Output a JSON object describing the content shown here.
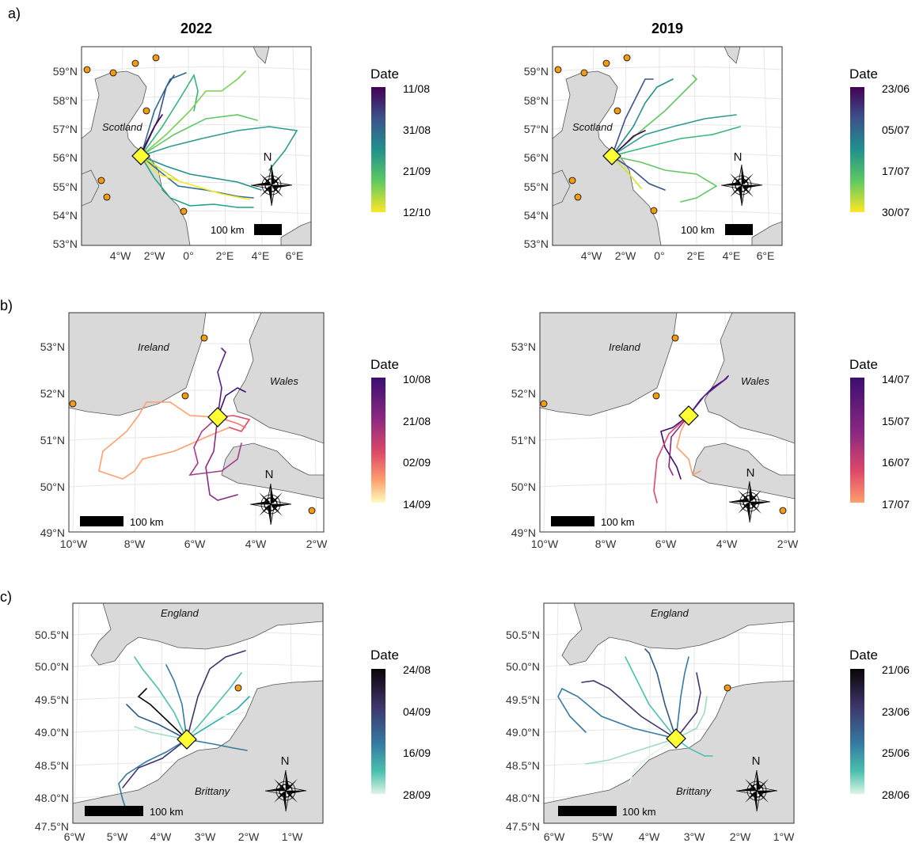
{
  "panel_labels": [
    "a)",
    "b)",
    "c)"
  ],
  "column_titles": [
    "2022",
    "2019"
  ],
  "rows": [
    {
      "id": "a",
      "places": [
        "Scotland"
      ],
      "y_ticks": [
        "59°N",
        "58°N",
        "57°N",
        "56°N",
        "55°N",
        "54°N",
        "53°N"
      ],
      "x_ticks": [
        "4°W",
        "2°W",
        "0°",
        "2°E",
        "4°E",
        "6°E"
      ],
      "scale_label": "100 km",
      "compass_label": "N",
      "legends": [
        {
          "title": "Date",
          "ticks": [
            "11/08",
            "31/08",
            "21/09",
            "12/10"
          ],
          "palette": "viridis"
        },
        {
          "title": "Date",
          "ticks": [
            "23/06",
            "05/07",
            "17/07",
            "30/07"
          ],
          "palette": "viridis"
        }
      ]
    },
    {
      "id": "b",
      "places": [
        "Ireland",
        "Wales"
      ],
      "y_ticks": [
        "53°N",
        "52°N",
        "51°N",
        "50°N",
        "49°N"
      ],
      "x_ticks": [
        "10°W",
        "8°W",
        "6°W",
        "4°W",
        "2°W"
      ],
      "scale_label": "100 km",
      "compass_label": "N",
      "legends": [
        {
          "title": "Date",
          "ticks": [
            "10/08",
            "21/08",
            "02/09",
            "14/09"
          ],
          "palette": "magma"
        },
        {
          "title": "Date",
          "ticks": [
            "14/07",
            "15/07",
            "16/07",
            "17/07"
          ],
          "palette": "magma"
        }
      ]
    },
    {
      "id": "c",
      "places": [
        "England",
        "Brittany"
      ],
      "y_ticks": [
        "50.5°N",
        "50.0°N",
        "49.5°N",
        "49.0°N",
        "48.5°N",
        "48.0°N",
        "47.5°N"
      ],
      "x_ticks": [
        "6°W",
        "5°W",
        "4°W",
        "3°W",
        "2°W",
        "1°W"
      ],
      "scale_label": "100 km",
      "compass_label": "N",
      "legends": [
        {
          "title": "Date",
          "ticks": [
            "24/08",
            "04/09",
            "16/09",
            "28/09"
          ],
          "palette": "mako"
        },
        {
          "title": "Date",
          "ticks": [
            "21/06",
            "23/06",
            "25/06",
            "28/06"
          ],
          "palette": "mako"
        }
      ]
    }
  ],
  "colors": {
    "land": "#d9d9d9",
    "coast": "#555555",
    "sea": "#ffffff",
    "graticule": "#e6e6e6",
    "release_marker": "#ffff33",
    "colony_marker": "#f39c12"
  },
  "palettes": {
    "viridis": [
      "#440154",
      "#3b528b",
      "#21918c",
      "#5ec962",
      "#fde725"
    ],
    "magma": [
      "#3b0f70",
      "#8c2981",
      "#de4968",
      "#fe9f6d",
      "#fcfdbf"
    ],
    "mako": [
      "#0b0405",
      "#3e356b",
      "#357ba2",
      "#49c1ad",
      "#def5e5"
    ]
  }
}
